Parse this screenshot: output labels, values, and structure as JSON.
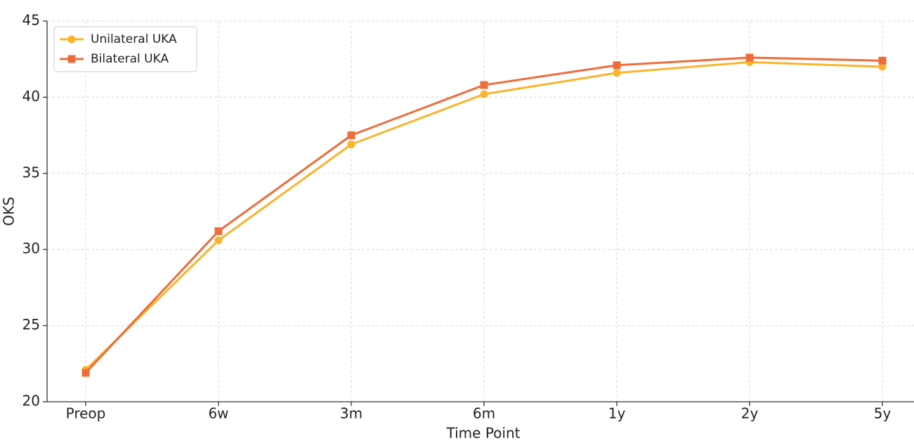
{
  "chart_data": {
    "type": "line",
    "xlabel": "Time Point",
    "ylabel": "OKS",
    "categories": [
      "Preop",
      "6w",
      "3m",
      "6m",
      "1y",
      "2y",
      "5y"
    ],
    "series": [
      {
        "name": "Unilateral UKA",
        "color": "#fbb42a",
        "marker": "circle",
        "values": [
          22.1,
          30.6,
          36.9,
          40.2,
          41.6,
          42.3,
          42.0
        ]
      },
      {
        "name": "Bilateral UKA",
        "color": "#ee6c3a",
        "marker": "square",
        "values": [
          21.9,
          31.2,
          37.5,
          40.8,
          42.1,
          42.6,
          42.4
        ]
      }
    ],
    "ylim": [
      20,
      45
    ],
    "yticks": [
      20,
      25,
      30,
      35,
      40,
      45
    ],
    "grid": true,
    "legend": "upper left"
  }
}
